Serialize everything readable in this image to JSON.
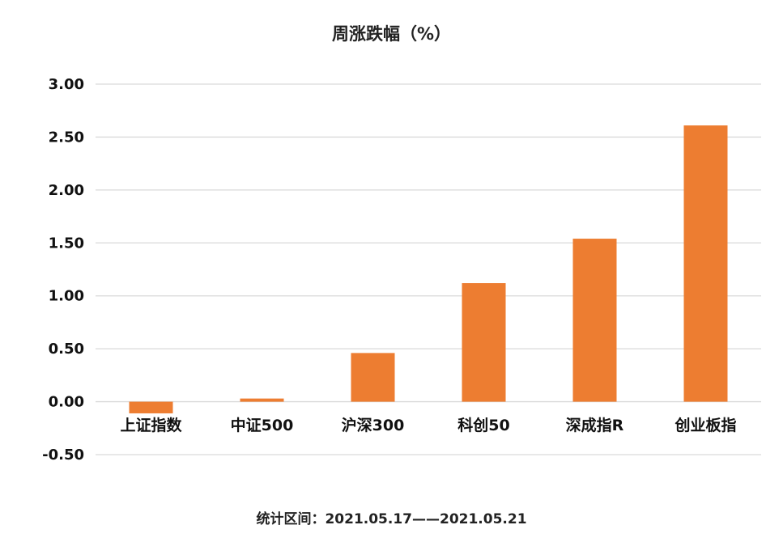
{
  "chart_data": {
    "type": "bar",
    "title": "周涨跌幅（%）",
    "categories": [
      "上证指数",
      "中证500",
      "沪深300",
      "科创50",
      "深成指R",
      "创业板指"
    ],
    "values": [
      -0.11,
      0.03,
      0.46,
      1.12,
      1.54,
      2.61
    ],
    "ylim": [
      -0.5,
      3.0
    ],
    "yticks": [
      "3.00",
      "2.50",
      "2.00",
      "1.50",
      "1.00",
      "0.50",
      "0.00",
      "-0.50"
    ],
    "grid": true,
    "bar_color": "#ED7D31",
    "grid_color": "#d9d9d9"
  },
  "footnote": "统计区间：2021.05.17——2021.05.21"
}
